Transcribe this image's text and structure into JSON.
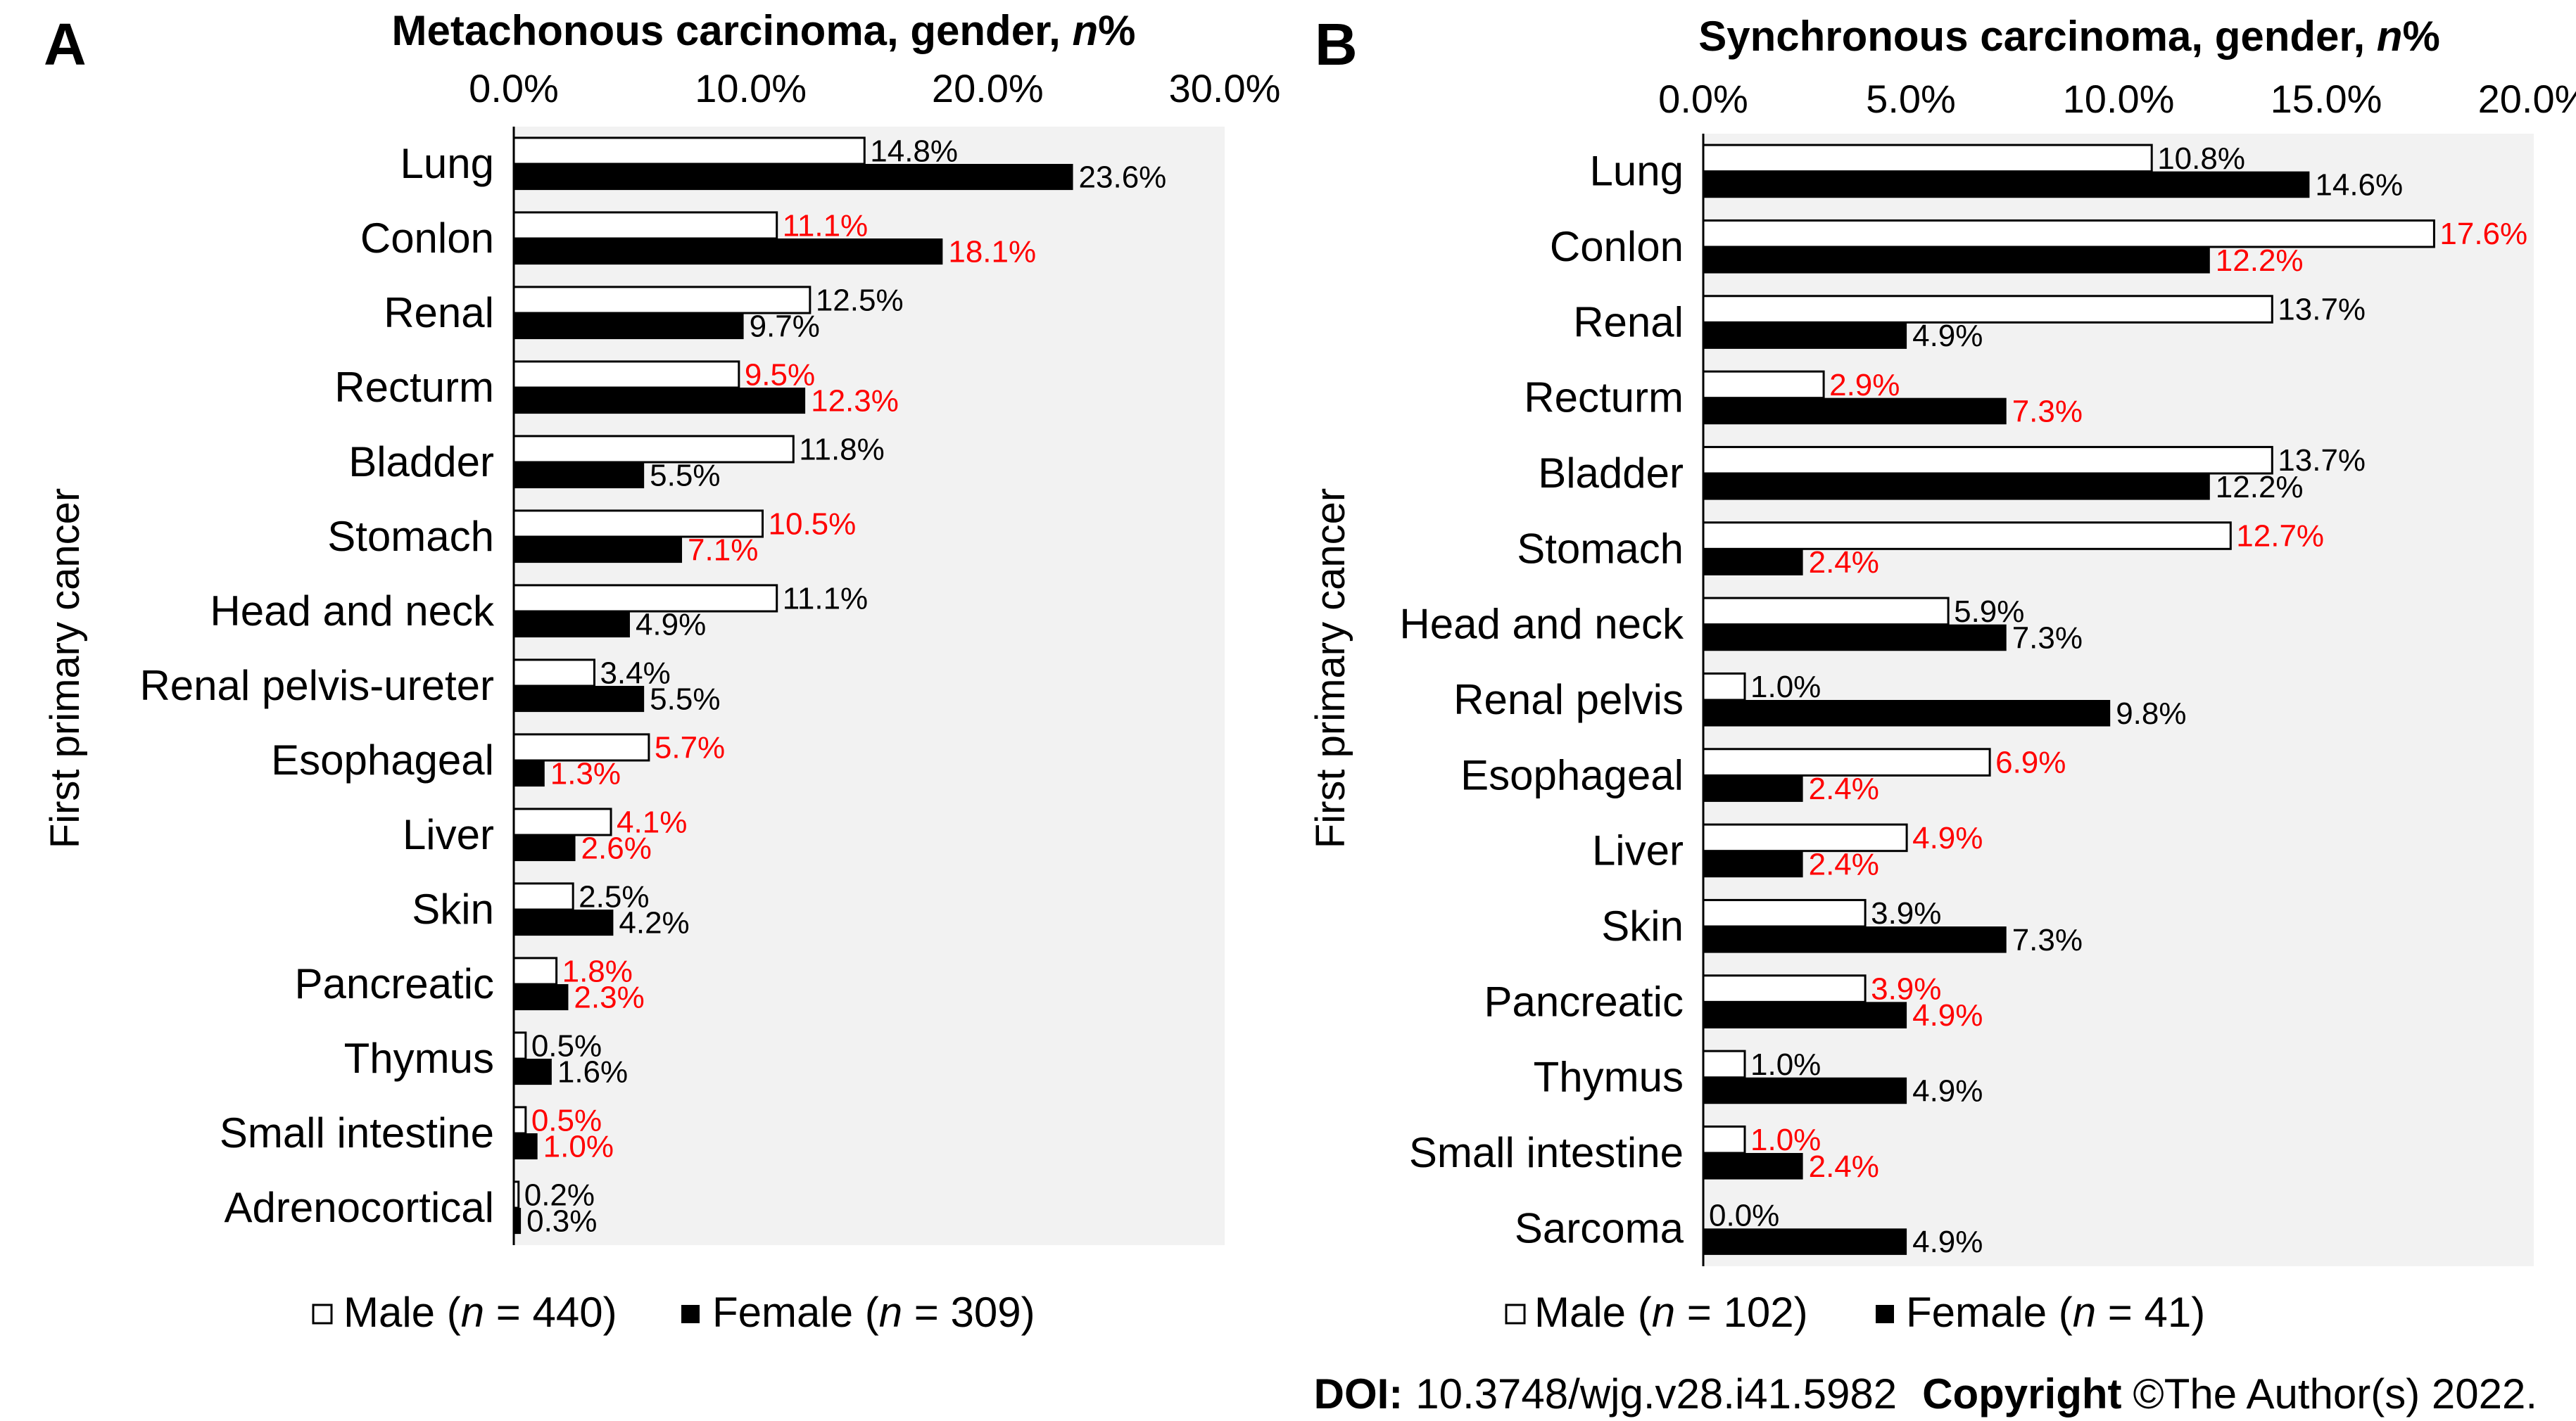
{
  "figure": {
    "footer": {
      "doi_label": "DOI:",
      "doi_value": "10.3748/wjg.v28.i41.5982",
      "copyright_label": "Copyright",
      "copyright_text": "©The Author(s) 2022."
    },
    "colors": {
      "male_fill": "#ffffff",
      "female_fill": "#000000",
      "bar_stroke": "#000000",
      "plot_background": "#f2f2f2",
      "label_default": "#000000",
      "label_highlight": "#ff0000"
    }
  },
  "chart_data": [
    {
      "type": "bar",
      "orientation": "horizontal",
      "panel": "A",
      "title_main": "Metachonous carcinoma, gender, ",
      "title_italic": "n",
      "title_suffix": "%",
      "xlabel": "",
      "ylabel": "First primary cancer",
      "xlim": [
        0,
        30
      ],
      "xticks": [
        "0.0%",
        "10.0%",
        "20.0%",
        "30.0%"
      ],
      "grid": false,
      "legend_position": "bottom",
      "categories": [
        "Lung",
        "Conlon",
        "Renal",
        "Recturm",
        "Bladder",
        "Stomach",
        "Head and neck",
        "Renal pelvis-ureter",
        "Esophageal",
        "Liver",
        "Skin",
        "Pancreatic",
        "Thymus",
        "Small intestine",
        "Adrenocortical"
      ],
      "series": [
        {
          "name": "Male",
          "legend_pre": "Male (",
          "legend_italic": "n",
          "legend_post": " = 440)",
          "values": [
            14.8,
            11.1,
            12.5,
            9.5,
            11.8,
            10.5,
            11.1,
            3.4,
            5.7,
            4.1,
            2.5,
            1.8,
            0.5,
            0.5,
            0.2
          ],
          "labels": [
            "14.8%",
            "11.1%",
            "12.5%",
            "9.5%",
            "11.8%",
            "10.5%",
            "11.1%",
            "3.4%",
            "5.7%",
            "4.1%",
            "2.5%",
            "1.8%",
            "0.5%",
            "0.5%",
            "0.2%"
          ]
        },
        {
          "name": "Female",
          "legend_pre": "Female (",
          "legend_italic": "n",
          "legend_post": " = 309)",
          "values": [
            23.6,
            18.1,
            9.7,
            12.3,
            5.5,
            7.1,
            4.9,
            5.5,
            1.3,
            2.6,
            4.2,
            2.3,
            1.6,
            1.0,
            0.3
          ],
          "labels": [
            "23.6%",
            "18.1%",
            "9.7%",
            "12.3%",
            "5.5%",
            "7.1%",
            "4.9%",
            "5.5%",
            "1.3%",
            "2.6%",
            "4.2%",
            "2.3%",
            "1.6%",
            "1.0%",
            "0.3%"
          ]
        }
      ],
      "highlighted_categories": [
        "Conlon",
        "Recturm",
        "Stomach",
        "Esophageal",
        "Liver",
        "Pancreatic",
        "Small intestine"
      ]
    },
    {
      "type": "bar",
      "orientation": "horizontal",
      "panel": "B",
      "title_main": "Synchronous carcinoma, gender, ",
      "title_italic": "n",
      "title_suffix": "%",
      "xlabel": "",
      "ylabel": "First primary cancer",
      "xlim": [
        0,
        20
      ],
      "xticks": [
        "0.0%",
        "5.0%",
        "10.0%",
        "15.0%",
        "20.0%"
      ],
      "grid": false,
      "legend_position": "bottom",
      "categories": [
        "Lung",
        "Conlon",
        "Renal",
        "Recturm",
        "Bladder",
        "Stomach",
        "Head and neck",
        "Renal pelvis",
        "Esophageal",
        "Liver",
        "Skin",
        "Pancreatic",
        "Thymus",
        "Small intestine",
        "Sarcoma"
      ],
      "series": [
        {
          "name": "Male",
          "legend_pre": "Male (",
          "legend_italic": "n",
          "legend_post": " = 102)",
          "values": [
            10.8,
            17.6,
            13.7,
            2.9,
            13.7,
            12.7,
            5.9,
            1.0,
            6.9,
            4.9,
            3.9,
            3.9,
            1.0,
            1.0,
            0.0
          ],
          "labels": [
            "10.8%",
            "17.6%",
            "13.7%",
            "2.9%",
            "13.7%",
            "12.7%",
            "5.9%",
            "1.0%",
            "6.9%",
            "4.9%",
            "3.9%",
            "3.9%",
            "1.0%",
            "1.0%",
            "0.0%"
          ]
        },
        {
          "name": "Female",
          "legend_pre": "Female (",
          "legend_italic": "n",
          "legend_post": " = 41)",
          "values": [
            14.6,
            12.2,
            4.9,
            7.3,
            12.2,
            2.4,
            7.3,
            9.8,
            2.4,
            2.4,
            7.3,
            4.9,
            4.9,
            2.4,
            4.9
          ],
          "labels": [
            "14.6%",
            "12.2%",
            "4.9%",
            "7.3%",
            "12.2%",
            "2.4%",
            "7.3%",
            "9.8%",
            "2.4%",
            "2.4%",
            "7.3%",
            "4.9%",
            "4.9%",
            "2.4%",
            "4.9%"
          ]
        }
      ],
      "highlighted_categories": [
        "Conlon",
        "Recturm",
        "Stomach",
        "Esophageal",
        "Liver",
        "Pancreatic",
        "Small intestine"
      ]
    }
  ]
}
